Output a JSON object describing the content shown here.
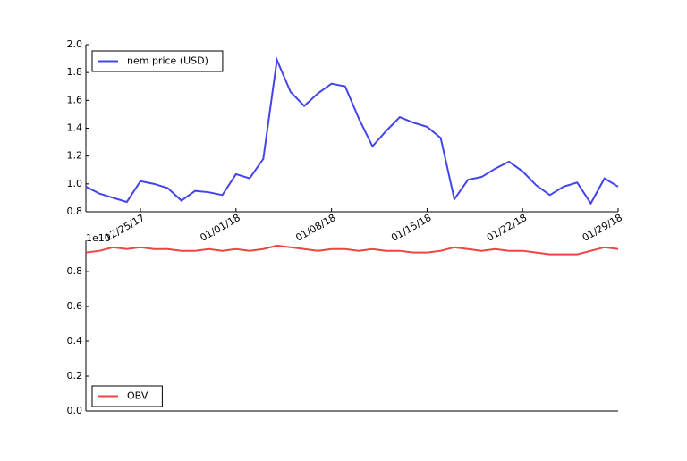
{
  "chart_data": [
    {
      "type": "line",
      "x": [
        "12/21/17",
        "12/22/17",
        "12/23/17",
        "12/24/17",
        "12/25/17",
        "12/26/17",
        "12/27/17",
        "12/28/17",
        "12/29/17",
        "12/30/17",
        "12/31/17",
        "01/01/18",
        "01/02/18",
        "01/03/18",
        "01/04/18",
        "01/05/18",
        "01/06/18",
        "01/07/18",
        "01/08/18",
        "01/09/18",
        "01/10/18",
        "01/11/18",
        "01/12/18",
        "01/13/18",
        "01/14/18",
        "01/15/18",
        "01/16/18",
        "01/17/18",
        "01/18/18",
        "01/19/18",
        "01/20/18",
        "01/21/18",
        "01/22/18",
        "01/23/18",
        "01/24/18",
        "01/25/18",
        "01/26/18",
        "01/27/18",
        "01/28/18",
        "01/29/18"
      ],
      "series": [
        {
          "name": "nem price (USD)",
          "color": "#4444ee",
          "values": [
            0.98,
            0.93,
            0.9,
            0.87,
            1.02,
            1.0,
            0.97,
            0.88,
            0.95,
            0.94,
            0.92,
            1.07,
            1.04,
            1.18,
            1.89,
            1.66,
            1.56,
            1.65,
            1.72,
            1.7,
            1.47,
            1.27,
            1.38,
            1.48,
            1.44,
            1.41,
            1.33,
            0.89,
            1.03,
            1.05,
            1.11,
            1.16,
            1.09,
            0.99,
            0.92,
            0.98,
            1.01,
            0.86,
            1.04,
            0.98
          ]
        }
      ],
      "ylim": [
        0.8,
        2.0
      ],
      "yticks": [
        0.8,
        {
          "value": 1,
          "label": "1.0"
        },
        1.2,
        1.4,
        1.6,
        1.8,
        {
          "value": 2,
          "label": "2.0"
        }
      ],
      "xticks": [
        "12/25/17",
        "01/01/18",
        "01/08/18",
        "01/15/18",
        "01/22/18",
        "01/29/18"
      ],
      "legend": "upper left"
    },
    {
      "type": "line",
      "x": [
        "12/21/17",
        "12/22/17",
        "12/23/17",
        "12/24/17",
        "12/25/17",
        "12/26/17",
        "12/27/17",
        "12/28/17",
        "12/29/17",
        "12/30/17",
        "12/31/17",
        "01/01/18",
        "01/02/18",
        "01/03/18",
        "01/04/18",
        "01/05/18",
        "01/06/18",
        "01/07/18",
        "01/08/18",
        "01/09/18",
        "01/10/18",
        "01/11/18",
        "01/12/18",
        "01/13/18",
        "01/14/18",
        "01/15/18",
        "01/16/18",
        "01/17/18",
        "01/18/18",
        "01/19/18",
        "01/20/18",
        "01/21/18",
        "01/22/18",
        "01/23/18",
        "01/24/18",
        "01/25/18",
        "01/26/18",
        "01/27/18",
        "01/28/18",
        "01/29/18"
      ],
      "series": [
        {
          "name": "OBV",
          "color": "#ee4444",
          "values": [
            0.91,
            0.92,
            0.94,
            0.93,
            0.94,
            0.93,
            0.93,
            0.92,
            0.92,
            0.93,
            0.92,
            0.93,
            0.92,
            0.93,
            0.95,
            0.94,
            0.93,
            0.92,
            0.93,
            0.93,
            0.92,
            0.93,
            0.92,
            0.92,
            0.91,
            0.91,
            0.92,
            0.94,
            0.93,
            0.92,
            0.93,
            0.92,
            0.92,
            0.91,
            0.9,
            0.9,
            0.9,
            0.92,
            0.94,
            0.93
          ]
        }
      ],
      "ylim": [
        0,
        0.98
      ],
      "yticks": [
        {
          "value": 0,
          "label": "0.0"
        },
        0.2,
        0.4,
        0.6,
        0.8
      ],
      "offset_label": "1e10",
      "legend": "lower left"
    }
  ]
}
